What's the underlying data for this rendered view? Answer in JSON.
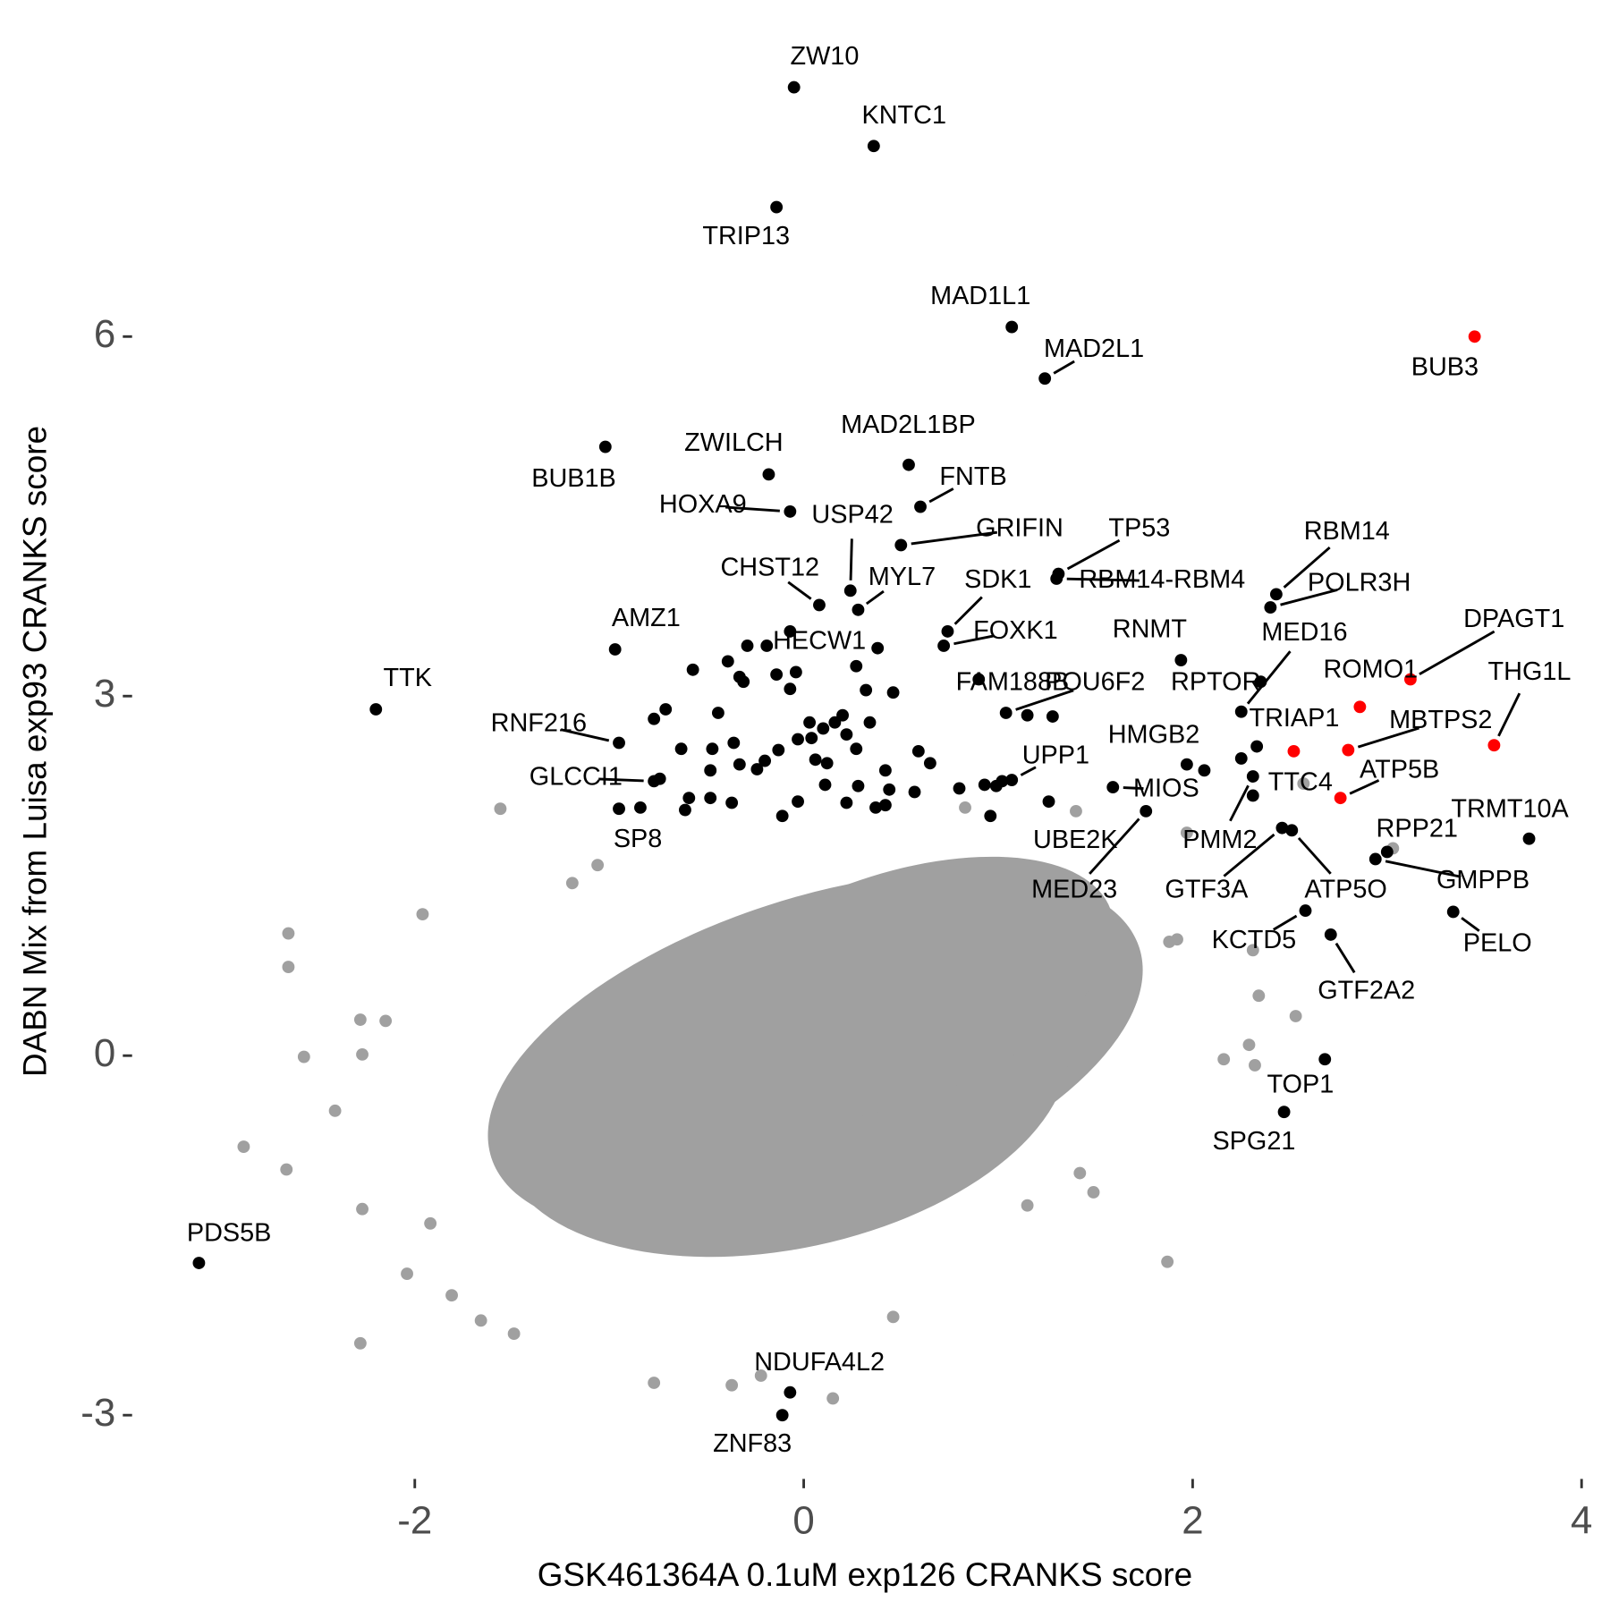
{
  "chart_data": {
    "type": "scatter",
    "x_label": "GSK461364A 0.1uM exp126 CRANKS score",
    "y_label": "DABN Mix from Luisa exp93 CRANKS score",
    "xlim": [
      -3.39,
      4.04
    ],
    "ylim": [
      -3.42,
      8.55
    ],
    "xticks": [
      -2,
      0,
      2,
      4
    ],
    "yticks": [
      -3,
      0,
      3,
      6
    ],
    "grid": false,
    "points": [
      {
        "label": "ZW10",
        "x": -0.05,
        "y": 8.08,
        "color": "#000000"
      },
      {
        "label": "KNTC1",
        "x": 0.36,
        "y": 7.59,
        "color": "#000000"
      },
      {
        "label": "TRIP13",
        "x": -0.14,
        "y": 7.08,
        "color": "#000000"
      },
      {
        "label": "MAD1L1",
        "x": 1.07,
        "y": 6.08,
        "color": "#000000"
      },
      {
        "label": "MAD2L1",
        "x": 1.24,
        "y": 5.65,
        "color": "#000000"
      },
      {
        "label": "BUB3",
        "x": 3.45,
        "y": 6.0,
        "color": "#ff0000"
      },
      {
        "label": "BUB1B",
        "x": -1.02,
        "y": 5.08,
        "color": "#000000"
      },
      {
        "label": "ZWILCH",
        "x": -0.18,
        "y": 4.85,
        "color": "#000000"
      },
      {
        "label": "MAD2L1BP",
        "x": 0.54,
        "y": 4.93,
        "color": "#000000"
      },
      {
        "label": "FNTB",
        "x": 0.6,
        "y": 4.58,
        "color": "#000000"
      },
      {
        "label": "HOXA9",
        "x": -0.07,
        "y": 4.54,
        "color": "#000000"
      },
      {
        "label": "USP42",
        "x": 0.24,
        "y": 3.88,
        "color": "#000000"
      },
      {
        "label": "MYL7",
        "x": 0.28,
        "y": 3.72,
        "color": "#000000"
      },
      {
        "label": "GRIFIN",
        "x": 0.5,
        "y": 4.26,
        "color": "#000000"
      },
      {
        "label": "TP53",
        "x": 1.31,
        "y": 4.02,
        "color": "#000000"
      },
      {
        "label": "CHST12",
        "x": 0.08,
        "y": 3.76,
        "color": "#000000"
      },
      {
        "label": "RBM14",
        "x": 2.43,
        "y": 3.85,
        "color": "#000000"
      },
      {
        "label": "RBM14-RBM4",
        "x": 1.3,
        "y": 3.98,
        "color": "#000000"
      },
      {
        "label": "POLR3H",
        "x": 2.4,
        "y": 3.74,
        "color": "#000000"
      },
      {
        "label": "SDK1",
        "x": 0.74,
        "y": 3.54,
        "color": "#000000"
      },
      {
        "label": "FOXK1",
        "x": 0.72,
        "y": 3.42,
        "color": "#000000"
      },
      {
        "label": "AMZ1",
        "x": -0.97,
        "y": 3.39,
        "color": "#000000"
      },
      {
        "label": "HECW1",
        "x": -0.07,
        "y": 3.54,
        "color": "#000000"
      },
      {
        "label": "RNMT",
        "x": 1.94,
        "y": 3.3,
        "color": "#000000"
      },
      {
        "label": "MED16",
        "x": 2.25,
        "y": 2.87,
        "color": "#000000"
      },
      {
        "label": "DPAGT1",
        "x": 3.12,
        "y": 3.14,
        "color": "#ff0000"
      },
      {
        "label": "ROMO1",
        "x": 2.86,
        "y": 2.91,
        "color": "#ff0000"
      },
      {
        "label": "THG1L",
        "x": 3.55,
        "y": 2.59,
        "color": "#ff0000"
      },
      {
        "label": "FAM188B",
        "x": 0.9,
        "y": 3.14,
        "color": "#000000"
      },
      {
        "label": "POU6F2",
        "x": 1.04,
        "y": 2.86,
        "color": "#000000"
      },
      {
        "label": "RPTOR",
        "x": 2.35,
        "y": 3.12,
        "color": "#000000"
      },
      {
        "label": "TTK",
        "x": -2.2,
        "y": 2.89,
        "color": "#000000"
      },
      {
        "label": "RNF216",
        "x": -0.95,
        "y": 2.61,
        "color": "#000000"
      },
      {
        "label": "MBTPS2",
        "x": 2.8,
        "y": 2.55,
        "color": "#ff0000"
      },
      {
        "label": "TRIAP1",
        "x": 2.33,
        "y": 2.58,
        "color": "#000000"
      },
      {
        "label": "HMGB2",
        "x": 1.97,
        "y": 2.43,
        "color": "#000000"
      },
      {
        "label": "UPP1",
        "x": 1.07,
        "y": 2.3,
        "color": "#000000"
      },
      {
        "label": "ATP5B",
        "x": 2.76,
        "y": 2.15,
        "color": "#ff0000"
      },
      {
        "label": "TTC4",
        "x": 2.31,
        "y": 2.17,
        "color": "#000000"
      },
      {
        "label": "MIOS",
        "x": 1.59,
        "y": 2.24,
        "color": "#000000"
      },
      {
        "label": "GLCCI1",
        "x": -0.77,
        "y": 2.29,
        "color": "#000000"
      },
      {
        "label": "SP8",
        "x": -0.95,
        "y": 2.06,
        "color": "#000000"
      },
      {
        "label": "TRMT10A",
        "x": 3.73,
        "y": 1.81,
        "color": "#000000"
      },
      {
        "label": "PMM2",
        "x": 2.31,
        "y": 2.33,
        "color": "#000000"
      },
      {
        "label": "UBE2K",
        "x": 1.26,
        "y": 2.12,
        "color": "#000000"
      },
      {
        "label": "RPP21",
        "x": 3.0,
        "y": 1.7,
        "color": "#000000"
      },
      {
        "label": "MED23",
        "x": 1.76,
        "y": 2.04,
        "color": "#000000"
      },
      {
        "label": "GTF3A",
        "x": 2.46,
        "y": 1.9,
        "color": "#000000"
      },
      {
        "label": "ATP5O",
        "x": 2.51,
        "y": 1.88,
        "color": "#000000"
      },
      {
        "label": "GMPPB",
        "x": 2.94,
        "y": 1.64,
        "color": "#000000"
      },
      {
        "label": "PELO",
        "x": 3.34,
        "y": 1.2,
        "color": "#000000"
      },
      {
        "label": "KCTD5",
        "x": 2.58,
        "y": 1.21,
        "color": "#000000"
      },
      {
        "label": "GTF2A2",
        "x": 2.71,
        "y": 1.01,
        "color": "#000000"
      },
      {
        "label": "TOP1",
        "x": 2.68,
        "y": -0.03,
        "color": "#000000"
      },
      {
        "label": "SPG21",
        "x": 2.47,
        "y": -0.47,
        "color": "#000000"
      },
      {
        "label": "PDS5B",
        "x": -3.11,
        "y": -1.73,
        "color": "#000000"
      },
      {
        "label": "NDUFA4L2",
        "x": -0.07,
        "y": -2.81,
        "color": "#000000"
      },
      {
        "label": "ZNF83",
        "x": -0.11,
        "y": -3.0,
        "color": "#000000"
      }
    ],
    "hits": {
      "color": "#000000",
      "x": [
        -0.29,
        -0.39,
        -0.33,
        -0.31,
        -0.19,
        -0.14,
        -0.07,
        -0.04,
        0.27,
        0.38,
        -0.57,
        -0.71,
        -0.77,
        -0.44,
        -0.47,
        -0.48,
        -0.63,
        -0.36,
        -0.33,
        -0.2,
        -0.13,
        -0.03,
        0.03,
        0.1,
        0.04,
        0.06,
        0.12,
        0.16,
        0.2,
        0.22,
        0.27,
        0.34,
        0.46,
        0.32,
        0.42,
        0.59,
        0.65,
        0.57,
        0.44,
        0.28,
        0.22,
        0.37,
        0.42,
        0.11,
        -0.03,
        -0.11,
        -0.37,
        -0.48,
        -0.59,
        -0.61,
        -0.84,
        -0.74,
        -0.24,
        0.8,
        0.93,
        0.96,
        0.99,
        1.02,
        1.15,
        1.28,
        2.06,
        2.25
      ],
      "y": [
        3.42,
        3.29,
        3.16,
        3.12,
        3.42,
        3.18,
        3.06,
        3.2,
        3.25,
        3.4,
        3.22,
        2.89,
        2.81,
        2.86,
        2.56,
        2.38,
        2.56,
        2.61,
        2.43,
        2.46,
        2.55,
        2.64,
        2.78,
        2.73,
        2.65,
        2.47,
        2.44,
        2.78,
        2.84,
        2.68,
        2.56,
        2.78,
        3.03,
        3.05,
        2.38,
        2.54,
        2.44,
        2.2,
        2.22,
        2.25,
        2.11,
        2.07,
        2.09,
        2.26,
        2.12,
        2.0,
        2.11,
        2.15,
        2.15,
        2.05,
        2.07,
        2.31,
        2.39,
        2.23,
        2.26,
        2.0,
        2.25,
        2.29,
        2.84,
        2.83,
        2.38,
        2.48
      ]
    },
    "highlights": {
      "color": "#ff0000",
      "x": [
        2.52
      ],
      "y": [
        2.54
      ]
    },
    "background": {
      "color": "#a0a0a0",
      "x": [
        -2.65,
        -2.65,
        -2.88,
        -2.66,
        -2.57,
        -2.41,
        -2.28,
        -2.27,
        -2.27,
        -2.28,
        -2.15,
        -1.96,
        -1.92,
        -2.04,
        -1.81,
        -1.66,
        -1.49,
        -1.06,
        -1.19,
        -1.56,
        1.87,
        1.88,
        2.16,
        2.32,
        2.34,
        2.53,
        2.31,
        3.03,
        2.57,
        1.92,
        0.46,
        0.15,
        -0.22,
        -0.37,
        -0.77,
        1.15,
        1.42,
        1.49,
        0.83,
        1.4,
        1.97,
        2.29
      ],
      "y": [
        1.02,
        0.74,
        -0.76,
        -0.95,
        -0.01,
        -0.46,
        -2.4,
        0.01,
        -1.28,
        0.3,
        0.29,
        1.18,
        -1.4,
        -1.82,
        -2.0,
        -2.21,
        -2.32,
        1.59,
        1.44,
        2.06,
        -1.72,
        0.95,
        -0.03,
        -0.08,
        0.5,
        0.33,
        0.88,
        1.73,
        2.27,
        0.97,
        -2.18,
        -2.86,
        -2.67,
        -2.75,
        -2.73,
        -1.25,
        -0.98,
        -1.14,
        2.07,
        2.04,
        1.86,
        0.09
      ]
    }
  }
}
